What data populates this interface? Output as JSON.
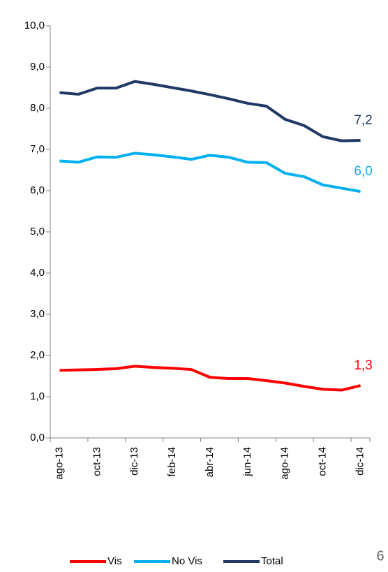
{
  "chart_data": {
    "type": "line",
    "categories": [
      "ago-13",
      null,
      "oct-13",
      null,
      "dic-13",
      null,
      "feb-14",
      null,
      "abr-14",
      null,
      "jun-14",
      null,
      "ago-14",
      null,
      "oct-14",
      null,
      "dic-14"
    ],
    "series": [
      {
        "name": "Vis",
        "color": "#ff0000",
        "values": [
          1.64,
          1.65,
          1.66,
          1.68,
          1.74,
          1.71,
          1.69,
          1.66,
          1.47,
          1.44,
          1.44,
          1.39,
          1.33,
          1.25,
          1.18,
          1.16,
          1.27
        ],
        "value_labels": [
          null,
          null,
          null,
          null,
          null,
          null,
          null,
          null,
          null,
          null,
          null,
          null,
          null,
          null,
          null,
          null,
          "1,3"
        ]
      },
      {
        "name": "No Vis",
        "color": "#00b0f0",
        "values": [
          6.72,
          6.69,
          6.82,
          6.81,
          6.91,
          6.87,
          6.82,
          6.76,
          6.86,
          6.81,
          6.69,
          6.68,
          6.42,
          6.34,
          6.14,
          6.06,
          5.98
        ],
        "value_labels": [
          null,
          null,
          null,
          null,
          null,
          null,
          null,
          null,
          null,
          null,
          null,
          null,
          null,
          null,
          null,
          null,
          "6,0"
        ]
      },
      {
        "name": "Total",
        "color": "#1f3864",
        "values": [
          8.38,
          8.34,
          8.49,
          8.49,
          8.65,
          8.58,
          8.5,
          8.42,
          8.33,
          8.23,
          8.12,
          8.05,
          7.73,
          7.58,
          7.31,
          7.21,
          7.22
        ],
        "value_labels": [
          null,
          null,
          null,
          null,
          null,
          null,
          null,
          null,
          null,
          null,
          null,
          null,
          null,
          null,
          null,
          null,
          "7,2"
        ]
      }
    ],
    "ylim": [
      0,
      10
    ],
    "yticks": [
      {
        "value": 0,
        "label": "0,0"
      },
      {
        "value": 1,
        "label": "1,0"
      },
      {
        "value": 2,
        "label": "2,0"
      },
      {
        "value": 3,
        "label": "3,0"
      },
      {
        "value": 4,
        "label": "4,0"
      },
      {
        "value": 5,
        "label": "5,0"
      },
      {
        "value": 6,
        "label": "6,0"
      },
      {
        "value": 7,
        "label": "7,0"
      },
      {
        "value": 8,
        "label": "8,0"
      },
      {
        "value": 9,
        "label": "9,0"
      },
      {
        "value": 10,
        "label": "10,0"
      }
    ],
    "grid": false,
    "legend": "bottom"
  },
  "page_number": "6"
}
